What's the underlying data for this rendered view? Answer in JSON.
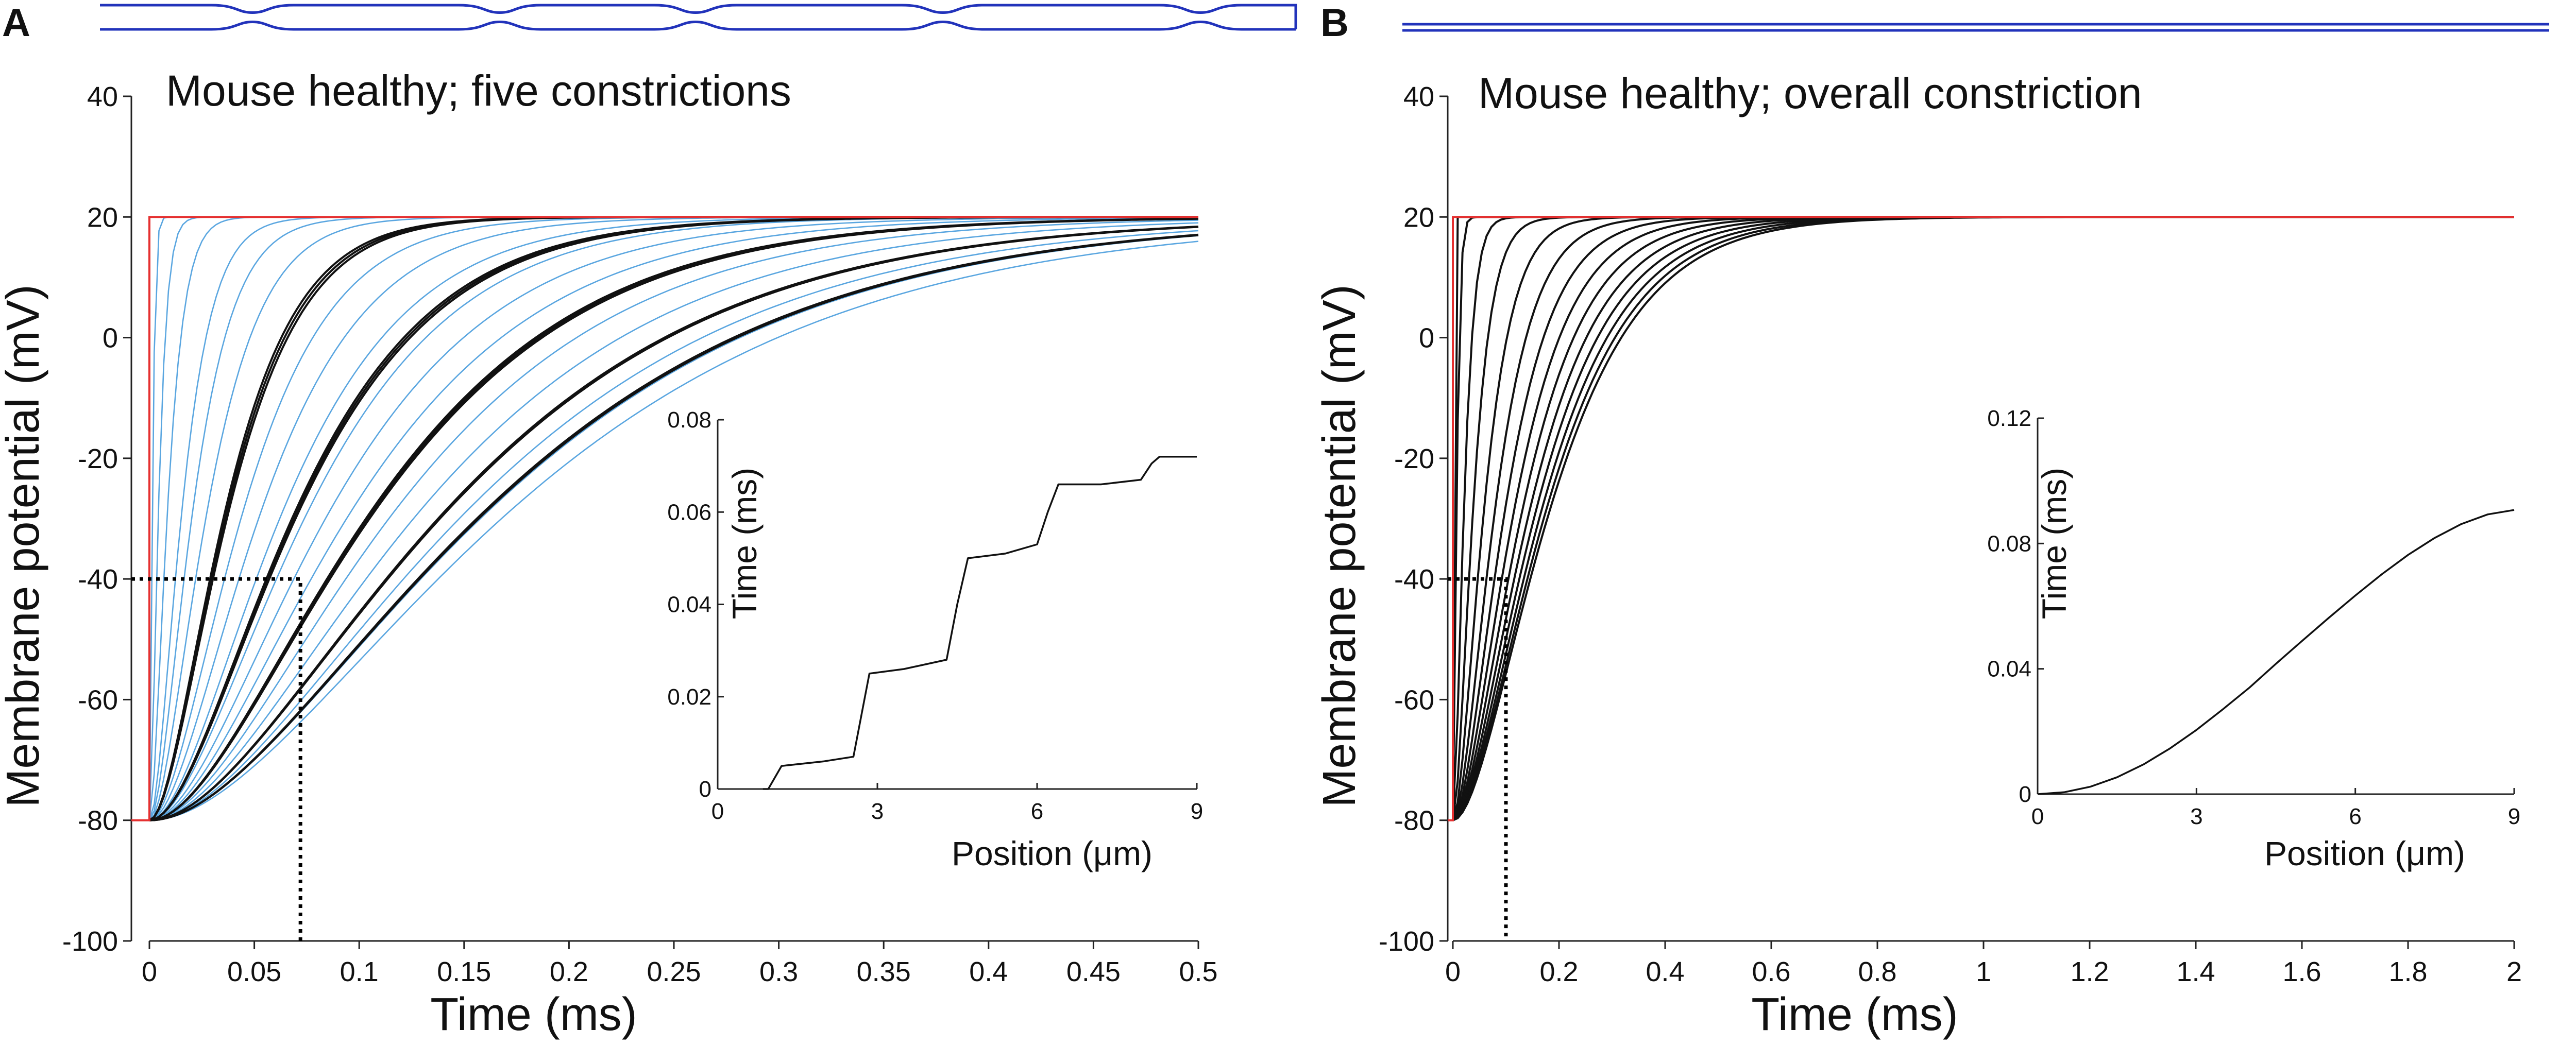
{
  "panels": [
    {
      "id": "A",
      "letter": "A",
      "title": "Mouse healthy; five constrictions",
      "schematic": "five-constrictions",
      "chart_data": {
        "type": "line",
        "title": "Mouse healthy; five constrictions",
        "xlabel": "Time (ms)",
        "ylabel": "Membrane potential (mV)",
        "xlim": [
          0,
          0.5
        ],
        "ylim": [
          -100,
          40
        ],
        "xticks": [
          0,
          0.05,
          0.1,
          0.15,
          0.2,
          0.25,
          0.3,
          0.35,
          0.4,
          0.45,
          0.5
        ],
        "xtick_labels": [
          "0",
          "0.05",
          "0.1",
          "0.15",
          "0.2",
          "0.25",
          "0.3",
          "0.35",
          "0.4",
          "0.45",
          "0.5"
        ],
        "yticks": [
          -100,
          -80,
          -60,
          -40,
          -20,
          0,
          20,
          40
        ],
        "ytick_labels": [
          "-100",
          "-80",
          "-60",
          "-40",
          "-20",
          "0",
          "20",
          "40"
        ],
        "rest_potential": -80,
        "step_potential": 20,
        "threshold_potential": -40,
        "threshold_time": 0.072,
        "stimulus_color": "#e53030",
        "series": [
          {
            "name": "blue traces",
            "color": "#5aa6e0",
            "taus": [
              0.0008,
              0.0025,
              0.005,
              0.009,
              0.012,
              0.016,
              0.021,
              0.026,
              0.031,
              0.037,
              0.044,
              0.05,
              0.056,
              0.062,
              0.068,
              0.075,
              0.082,
              0.088,
              0.094,
              0.1
            ]
          },
          {
            "name": "black bundles",
            "color": "#111111",
            "taus": [
              0.021,
              0.0215,
              0.022,
              0.0405,
              0.041,
              0.0415,
              0.0615,
              0.062,
              0.0625,
              0.082,
              0.0825,
              0.093,
              0.0935
            ]
          }
        ],
        "inset": {
          "type": "line",
          "xlabel": "Position (μm)",
          "ylabel": "Time (ms)",
          "xlim": [
            0,
            9
          ],
          "ylim": [
            0,
            0.08
          ],
          "xticks": [
            0,
            3,
            6,
            9
          ],
          "xtick_labels": [
            "0",
            "3",
            "6",
            "9"
          ],
          "yticks": [
            0,
            0.02,
            0.04,
            0.06,
            0.08
          ],
          "ytick_labels": [
            "0",
            "0.02",
            "0.04",
            "0.06",
            "0.08"
          ],
          "x": [
            0.85,
            0.95,
            1.2,
            2.0,
            2.55,
            2.7,
            2.85,
            3.5,
            4.3,
            4.5,
            4.7,
            5.4,
            6.0,
            6.2,
            6.4,
            7.2,
            7.95,
            8.15,
            8.3,
            8.6,
            9.0
          ],
          "y": [
            0.0,
            0.0,
            0.005,
            0.006,
            0.007,
            0.016,
            0.025,
            0.026,
            0.028,
            0.04,
            0.05,
            0.051,
            0.053,
            0.06,
            0.066,
            0.066,
            0.067,
            0.0705,
            0.072,
            0.072,
            0.072
          ]
        }
      }
    },
    {
      "id": "B",
      "letter": "B",
      "title": "Mouse healthy; overall constriction",
      "schematic": "overall-constriction",
      "chart_data": {
        "type": "line",
        "title": "Mouse healthy; overall constriction",
        "xlabel": "Time (ms)",
        "ylabel": "Membrane potential (mV)",
        "xlim": [
          0,
          2
        ],
        "ylim": [
          -100,
          40
        ],
        "xticks": [
          0,
          0.2,
          0.4,
          0.6,
          0.8,
          1,
          1.2,
          1.4,
          1.6,
          1.8,
          2
        ],
        "xtick_labels": [
          "0",
          "0.2",
          "0.4",
          "0.6",
          "0.8",
          "1",
          "1.2",
          "1.4",
          "1.6",
          "1.8",
          "2"
        ],
        "yticks": [
          -100,
          -80,
          -60,
          -40,
          -20,
          0,
          20,
          40
        ],
        "ytick_labels": [
          "-100",
          "-80",
          "-60",
          "-40",
          "-20",
          "0",
          "20",
          "40"
        ],
        "rest_potential": -80,
        "step_potential": 20,
        "threshold_potential": -40,
        "threshold_time": 0.1,
        "stimulus_color": "#e53030",
        "series": [
          {
            "name": "black traces",
            "color": "#111111",
            "taus": [
              0.0005,
              0.004,
              0.012,
              0.022,
              0.034,
              0.046,
              0.057,
              0.067,
              0.076,
              0.084,
              0.091,
              0.097,
              0.102,
              0.106
            ]
          }
        ],
        "inset": {
          "type": "line",
          "xlabel": "Position (μm)",
          "ylabel": "Time (ms)",
          "xlim": [
            0,
            9
          ],
          "ylim": [
            0,
            0.12
          ],
          "xticks": [
            0,
            3,
            6,
            9
          ],
          "xtick_labels": [
            "0",
            "3",
            "6",
            "9"
          ],
          "yticks": [
            0,
            0.04,
            0.08,
            0.12
          ],
          "ytick_labels": [
            "0",
            "0.04",
            "0.08",
            "0.12"
          ],
          "x": [
            0,
            0.5,
            1,
            1.5,
            2,
            2.5,
            3,
            3.5,
            4,
            4.5,
            5,
            5.5,
            6,
            6.5,
            7,
            7.5,
            8,
            8.5,
            9
          ],
          "y": [
            0,
            0.0006,
            0.0024,
            0.0054,
            0.0095,
            0.0146,
            0.0205,
            0.0271,
            0.034,
            0.0416,
            0.049,
            0.0563,
            0.0634,
            0.0702,
            0.0764,
            0.0818,
            0.0862,
            0.0893,
            0.0907
          ]
        }
      }
    }
  ]
}
